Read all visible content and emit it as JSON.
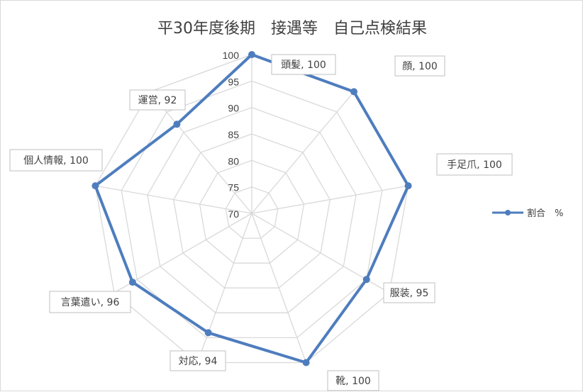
{
  "chart_data": {
    "type": "radar",
    "title": "平30年度後期　接遇等　自己点検結果",
    "categories": [
      "頭髪",
      "顔",
      "手足爪",
      "服装",
      "靴",
      "対応",
      "言葉遣い",
      "個人情報",
      "運営"
    ],
    "series": [
      {
        "name": "割合　%",
        "values": [
          100,
          100,
          100,
          95,
          100,
          94,
          96,
          100,
          92
        ]
      }
    ],
    "rlim": [
      70,
      100
    ],
    "ticks": [
      70,
      75,
      80,
      85,
      90,
      95,
      100
    ],
    "data_labels": [
      "頭髪, 100",
      "顔, 100",
      "手足爪, 100",
      "服装, 95",
      "靴, 100",
      "対応, 94",
      "言葉遣い, 96",
      "個人情報, 100",
      "運営, 92"
    ],
    "legend_position": "right",
    "grid": true,
    "colors": {
      "series": "#4e7dbe",
      "grid": "#d9d9d9",
      "text": "#404040"
    }
  }
}
